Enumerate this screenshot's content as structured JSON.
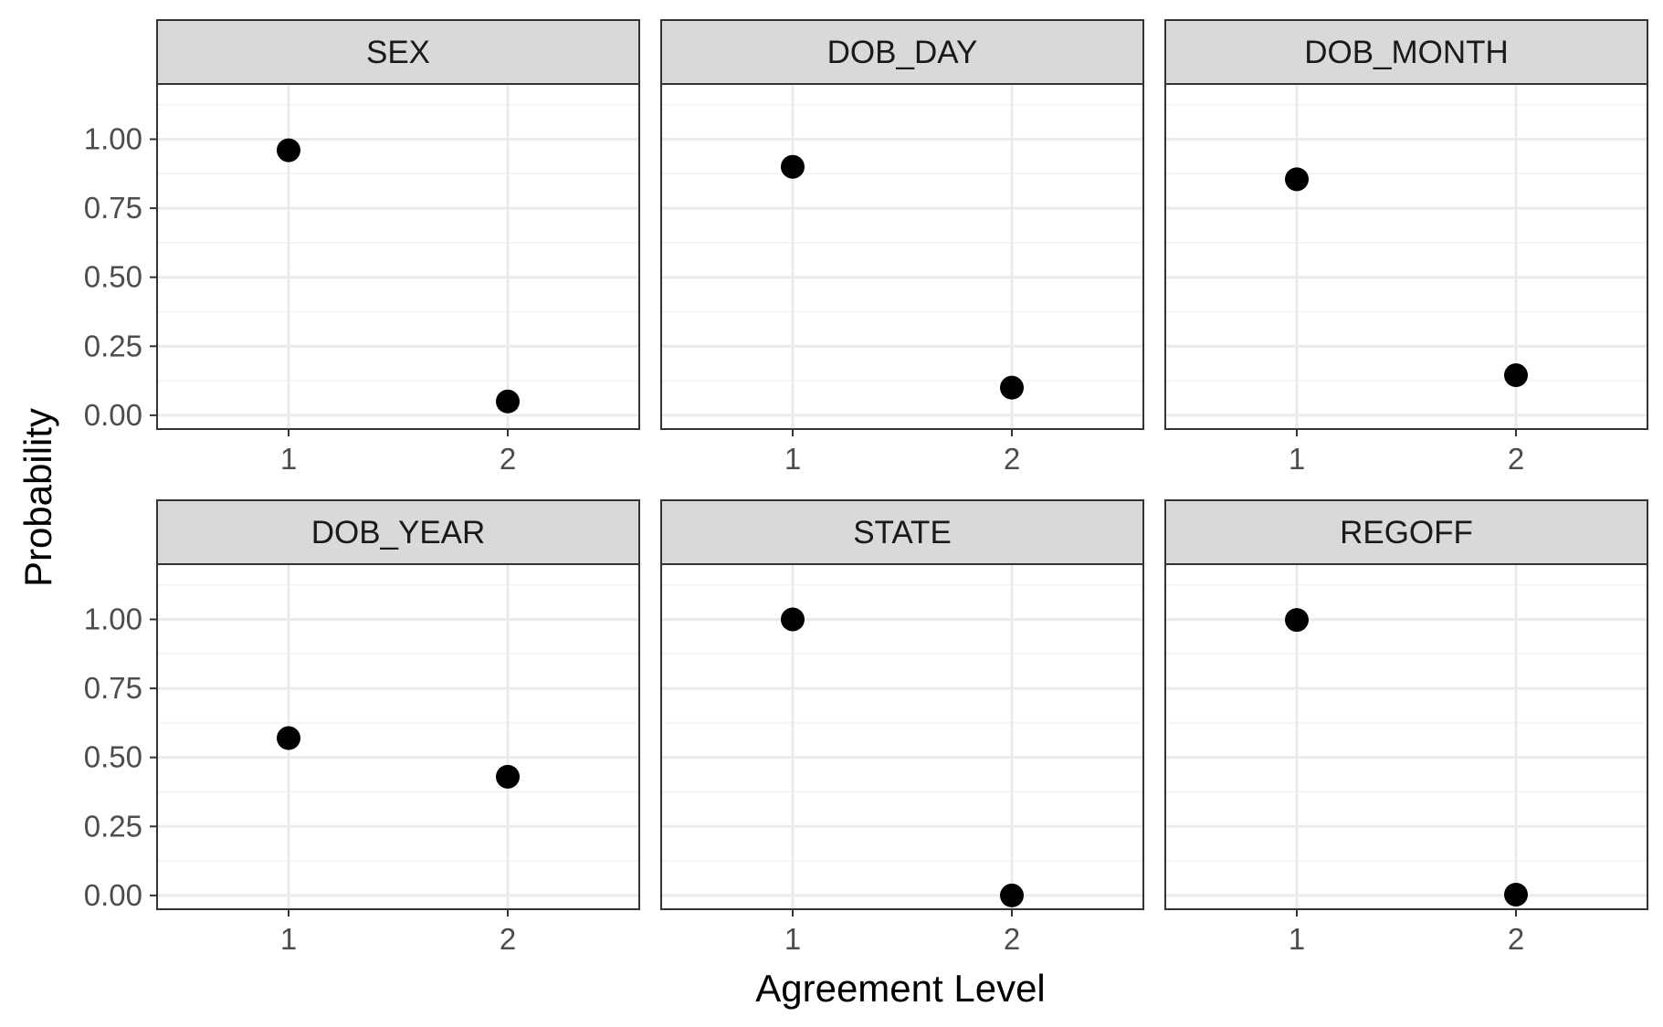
{
  "chart_data": {
    "type": "scatter",
    "layout": "facet-grid",
    "xlabel": "Agreement Level",
    "ylabel": "Probability",
    "x_ticks": [
      "1",
      "2"
    ],
    "y_ticks": [
      "0.00",
      "0.25",
      "0.50",
      "0.75",
      "1.00"
    ],
    "ylim": [
      -0.05,
      1.2
    ],
    "grid": true,
    "point_color": "#000000",
    "strip_color": "#d9d9d9",
    "panels": [
      {
        "title": "SEX",
        "x": [
          1,
          2
        ],
        "values": [
          0.96,
          0.05
        ]
      },
      {
        "title": "DOB_DAY",
        "x": [
          1,
          2
        ],
        "values": [
          0.9,
          0.1
        ]
      },
      {
        "title": "DOB_MONTH",
        "x": [
          1,
          2
        ],
        "values": [
          0.855,
          0.145
        ]
      },
      {
        "title": "DOB_YEAR",
        "x": [
          1,
          2
        ],
        "values": [
          0.57,
          0.43
        ]
      },
      {
        "title": "STATE",
        "x": [
          1,
          2
        ],
        "values": [
          1.0,
          0.0
        ]
      },
      {
        "title": "REGOFF",
        "x": [
          1,
          2
        ],
        "values": [
          0.998,
          0.003
        ]
      }
    ]
  }
}
